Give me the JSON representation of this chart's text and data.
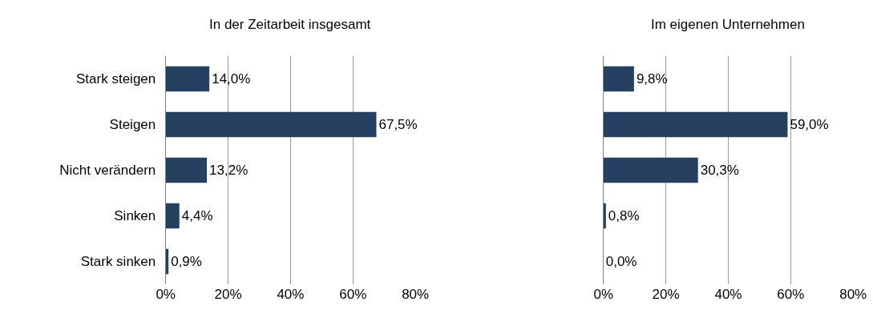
{
  "chart_data": [
    {
      "type": "bar",
      "orientation": "horizontal",
      "title": "In der Zeitarbeit insgesamt",
      "categories": [
        "Stark steigen",
        "Steigen",
        "Nicht verändern",
        "Sinken",
        "Stark sinken"
      ],
      "values": [
        14.0,
        67.5,
        13.2,
        4.4,
        0.9
      ],
      "value_labels": [
        "14,0%",
        "67,5%",
        "13,2%",
        "4,4%",
        "0,9%"
      ],
      "color": "#264061",
      "xlim": [
        0,
        80
      ],
      "xticks": [
        {
          "value": 0,
          "label": "0%"
        },
        {
          "value": 20,
          "label": "20%"
        },
        {
          "value": 40,
          "label": "40%"
        },
        {
          "value": 60,
          "label": "60%"
        },
        {
          "value": 80,
          "label": "80%"
        }
      ],
      "grid": "x"
    },
    {
      "type": "bar",
      "orientation": "horizontal",
      "title": "Im eigenen Unternehmen",
      "categories": [
        null,
        null,
        null,
        null,
        null
      ],
      "values": [
        9.8,
        59.0,
        30.3,
        0.8,
        0.0
      ],
      "value_labels": [
        "9,8%",
        "59,0%",
        "30,3%",
        "0,8%",
        "0,0%"
      ],
      "color": "#264061",
      "xlim": [
        0,
        80
      ],
      "xticks": [
        {
          "value": 0,
          "label": "0%"
        },
        {
          "value": 20,
          "label": "20%"
        },
        {
          "value": 40,
          "label": "40%"
        },
        {
          "value": 60,
          "label": "60%"
        },
        {
          "value": 80,
          "label": "80%"
        }
      ],
      "grid": "x",
      "tick_labels": "x"
    }
  ]
}
